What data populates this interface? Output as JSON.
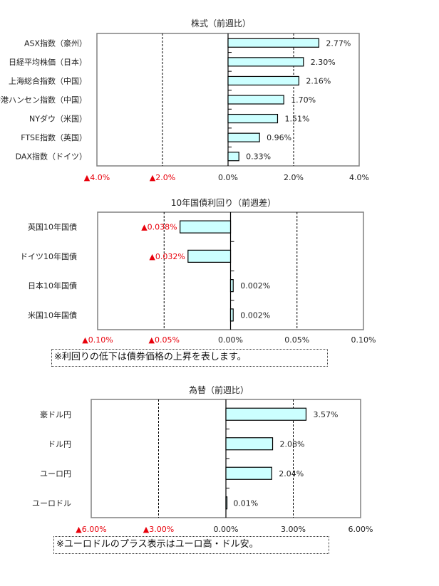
{
  "colors": {
    "bar_fill": "#ccffff",
    "bar_stroke": "#000000",
    "negative_text": "#e8000b",
    "frame": "#808080"
  },
  "chart_data": [
    {
      "type": "bar",
      "orientation": "horizontal",
      "title": "株式（前週比）",
      "categories": [
        "ASX指数（豪州）",
        "日経平均株価（日本）",
        "上海総合指数（中国）",
        "香港ハンセン指数（中国）",
        "NYダウ（米国）",
        "FTSE指数（英国）",
        "DAX指数（ドイツ）"
      ],
      "values": [
        2.77,
        2.3,
        2.16,
        1.7,
        1.51,
        0.96,
        0.33
      ],
      "value_labels": [
        "2.77%",
        "2.30%",
        "2.16%",
        "1.70%",
        "1.51%",
        "0.96%",
        "0.33%"
      ],
      "unit": "%",
      "xlim": [
        -4.0,
        4.0
      ],
      "ticks": [
        -4.0,
        -2.0,
        0.0,
        2.0,
        4.0
      ],
      "tick_labels": [
        "▲4.0%",
        "▲2.0%",
        "0.0%",
        "2.0%",
        "4.0%"
      ],
      "grid": "dashed vertical"
    },
    {
      "type": "bar",
      "orientation": "horizontal",
      "title": "10年国債利回り（前週差）",
      "categories": [
        "英国10年国債",
        "ドイツ10年国債",
        "日本10年国債",
        "米国10年国債"
      ],
      "values": [
        -0.038,
        -0.032,
        0.002,
        0.002
      ],
      "value_labels": [
        "▲0.038%",
        "▲0.032%",
        "0.002%",
        "0.002%"
      ],
      "unit": "%",
      "xlim": [
        -0.1,
        0.1
      ],
      "ticks": [
        -0.1,
        -0.05,
        0.0,
        0.05,
        0.1
      ],
      "tick_labels": [
        "▲0.10%",
        "▲0.05%",
        "0.00%",
        "0.05%",
        "0.10%"
      ],
      "grid": "dashed vertical",
      "note": "※利回りの低下は債券価格の上昇を表します。"
    },
    {
      "type": "bar",
      "orientation": "horizontal",
      "title": "為替（前週比）",
      "categories": [
        "豪ドル円",
        "ドル円",
        "ユーロ円",
        "ユーロドル"
      ],
      "values": [
        3.57,
        2.08,
        2.04,
        0.01
      ],
      "value_labels": [
        "3.57%",
        "2.08%",
        "2.04%",
        "0.01%"
      ],
      "unit": "%",
      "xlim": [
        -6.0,
        6.0
      ],
      "ticks": [
        -6.0,
        -3.0,
        0.0,
        3.0,
        6.0
      ],
      "tick_labels": [
        "▲6.00%",
        "▲3.00%",
        "0.00%",
        "3.00%",
        "6.00%"
      ],
      "grid": "dashed vertical",
      "note": "※ユーロドルのプラス表示はユーロ高・ドル安。"
    }
  ]
}
